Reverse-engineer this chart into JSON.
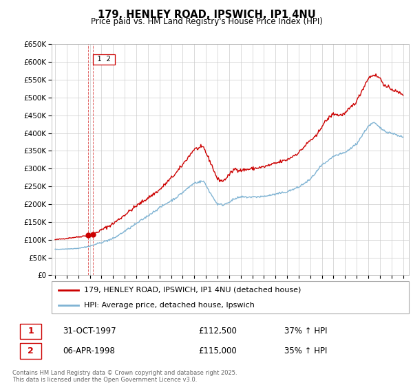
{
  "title": "179, HENLEY ROAD, IPSWICH, IP1 4NU",
  "subtitle": "Price paid vs. HM Land Registry's House Price Index (HPI)",
  "ylim": [
    0,
    650000
  ],
  "yticks": [
    0,
    50000,
    100000,
    150000,
    200000,
    250000,
    300000,
    350000,
    400000,
    450000,
    500000,
    550000,
    600000,
    650000
  ],
  "ytick_labels": [
    "£0",
    "£50K",
    "£100K",
    "£150K",
    "£200K",
    "£250K",
    "£300K",
    "£350K",
    "£400K",
    "£450K",
    "£500K",
    "£550K",
    "£600K",
    "£650K"
  ],
  "xlim_start": 1994.7,
  "xlim_end": 2025.5,
  "bg_color": "#ffffff",
  "grid_color": "#cccccc",
  "red_line_color": "#cc0000",
  "blue_line_color": "#7fb3d3",
  "sale1_date_num": 1997.83,
  "sale1_price": 112500,
  "sale2_date_num": 1998.27,
  "sale2_price": 115000,
  "legend_line1": "179, HENLEY ROAD, IPSWICH, IP1 4NU (detached house)",
  "legend_line2": "HPI: Average price, detached house, Ipswich",
  "table_row1": [
    "1",
    "31-OCT-1997",
    "£112,500",
    "37% ↑ HPI"
  ],
  "table_row2": [
    "2",
    "06-APR-1998",
    "£115,000",
    "35% ↑ HPI"
  ],
  "copyright": "Contains HM Land Registry data © Crown copyright and database right 2025.\nThis data is licensed under the Open Government Licence v3.0.",
  "vline_color": "#cc0000",
  "vline_x1": 1997.83,
  "vline_x2": 1998.27,
  "red_keypoints": [
    [
      1995.0,
      100000
    ],
    [
      1997.0,
      108000
    ],
    [
      1997.83,
      112500
    ],
    [
      1998.27,
      115000
    ],
    [
      2000.0,
      145000
    ],
    [
      2002.0,
      195000
    ],
    [
      2004.0,
      240000
    ],
    [
      2005.5,
      290000
    ],
    [
      2007.0,
      355000
    ],
    [
      2007.8,
      360000
    ],
    [
      2008.5,
      310000
    ],
    [
      2009.0,
      270000
    ],
    [
      2009.5,
      265000
    ],
    [
      2010.5,
      300000
    ],
    [
      2011.0,
      295000
    ],
    [
      2012.0,
      300000
    ],
    [
      2013.0,
      305000
    ],
    [
      2014.0,
      315000
    ],
    [
      2015.0,
      325000
    ],
    [
      2016.0,
      345000
    ],
    [
      2017.0,
      380000
    ],
    [
      2017.5,
      390000
    ],
    [
      2018.0,
      420000
    ],
    [
      2018.5,
      440000
    ],
    [
      2019.0,
      455000
    ],
    [
      2019.5,
      450000
    ],
    [
      2020.0,
      455000
    ],
    [
      2021.0,
      490000
    ],
    [
      2022.0,
      555000
    ],
    [
      2022.5,
      565000
    ],
    [
      2023.0,
      555000
    ],
    [
      2023.5,
      530000
    ],
    [
      2024.0,
      525000
    ],
    [
      2024.5,
      515000
    ],
    [
      2025.0,
      510000
    ]
  ],
  "blue_keypoints": [
    [
      1995.0,
      73000
    ],
    [
      1996.0,
      74000
    ],
    [
      1997.0,
      76000
    ],
    [
      1998.0,
      82000
    ],
    [
      2000.0,
      103000
    ],
    [
      2002.0,
      145000
    ],
    [
      2004.0,
      190000
    ],
    [
      2005.5,
      220000
    ],
    [
      2007.0,
      260000
    ],
    [
      2007.8,
      265000
    ],
    [
      2008.5,
      225000
    ],
    [
      2009.0,
      200000
    ],
    [
      2009.5,
      198000
    ],
    [
      2010.5,
      215000
    ],
    [
      2011.0,
      220000
    ],
    [
      2012.0,
      220000
    ],
    [
      2013.0,
      222000
    ],
    [
      2014.0,
      228000
    ],
    [
      2015.0,
      235000
    ],
    [
      2016.0,
      248000
    ],
    [
      2017.0,
      270000
    ],
    [
      2018.0,
      310000
    ],
    [
      2018.5,
      320000
    ],
    [
      2019.0,
      335000
    ],
    [
      2019.5,
      340000
    ],
    [
      2020.0,
      345000
    ],
    [
      2021.0,
      370000
    ],
    [
      2022.0,
      420000
    ],
    [
      2022.5,
      430000
    ],
    [
      2023.0,
      415000
    ],
    [
      2023.5,
      405000
    ],
    [
      2024.0,
      400000
    ],
    [
      2024.5,
      395000
    ],
    [
      2025.0,
      388000
    ]
  ]
}
